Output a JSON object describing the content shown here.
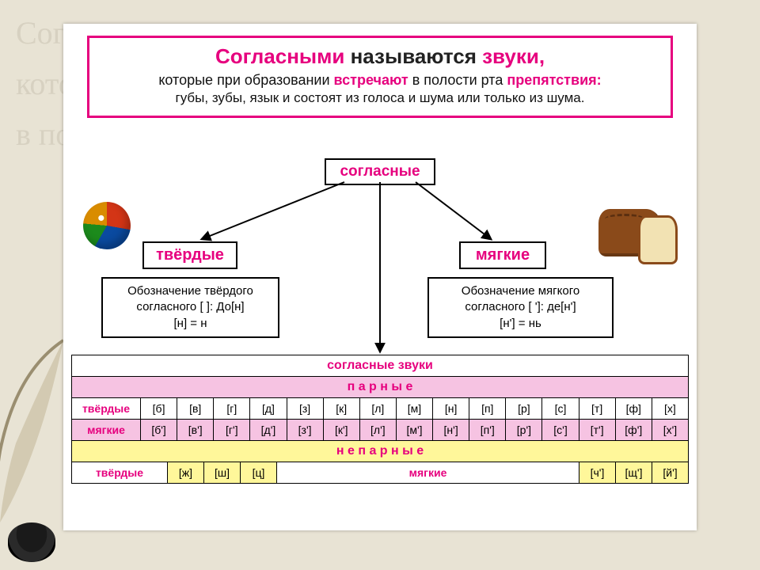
{
  "colors": {
    "magenta": "#e6007e",
    "pink": "#f6c3e2",
    "yellow": "#fff79a",
    "border": "#000000",
    "panel": "#ffffff",
    "page_bg": "#e8e3d4"
  },
  "background_script": "Согласными называются звуки,\nкоторые при образовании встречают\nв полости рта препятствия...",
  "definition": {
    "line1": {
      "w1": "Согласными",
      "w2": "называются",
      "w3": "звуки,"
    },
    "line2": {
      "t1": "которые при образовании ",
      "t2": "встречают",
      "t3": " в полости рта ",
      "t4": "препятствия:"
    },
    "line3": "губы, зубы, язык и состоят из голоса и шума или только из шума."
  },
  "nodes": {
    "root": "согласные",
    "hard": "твёрдые",
    "soft": "мягкие",
    "hard_desc": "Обозначение твёрдого согласного [  ]: До[н]\n[н] = н",
    "soft_desc": "Обозначение мягкого согласного [ ']: де[н']\n[н'] = нь"
  },
  "icons": {
    "ball": "beach-ball-icon",
    "bread": "bread-icon",
    "feather": "feather-icon",
    "ink": "inkpot-icon"
  },
  "table": {
    "title": "согласные звуки",
    "paired": "п а р н ы е",
    "unpaired": "н е п а р н ы е",
    "side_hard": "твёрдые",
    "side_soft": "мягкие",
    "hard_row": [
      "[б]",
      "[в]",
      "[г]",
      "[д]",
      "[з]",
      "[к]",
      "[л]",
      "[м]",
      "[н]",
      "[п]",
      "[р]",
      "[с]",
      "[т]",
      "[ф]",
      "[х]"
    ],
    "soft_row": [
      "[б']",
      "[в']",
      "[г']",
      "[д']",
      "[з']",
      "[к']",
      "[л']",
      "[м']",
      "[н']",
      "[п']",
      "[р']",
      "[с']",
      "[т']",
      "[ф']",
      "[х']"
    ],
    "unpaired_hard": [
      "[ж]",
      "[ш]",
      "[ц]"
    ],
    "unpaired_soft": [
      "[ч']",
      "[щ']",
      "[й']"
    ],
    "mid_label": "мягкие"
  }
}
